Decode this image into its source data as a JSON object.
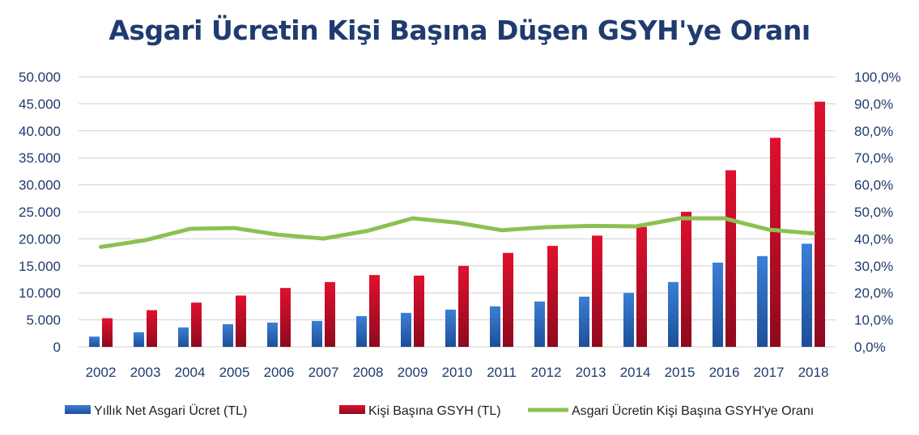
{
  "chart_data": {
    "type": "bar",
    "title": "Asgari Ücretin Kişi Başına Düşen GSYH'ye Oranı",
    "categories": [
      "2002",
      "2003",
      "2004",
      "2005",
      "2006",
      "2007",
      "2008",
      "2009",
      "2010",
      "2011",
      "2012",
      "2013",
      "2014",
      "2015",
      "2016",
      "2017",
      "2018"
    ],
    "series": [
      {
        "name": "Yıllık Net Asgari Ücret (TL)",
        "kind": "bar",
        "axis": "left",
        "values": [
          1900,
          2700,
          3600,
          4200,
          4500,
          4800,
          5700,
          6300,
          6900,
          7500,
          8400,
          9300,
          10000,
          12000,
          15600,
          16800,
          19100
        ]
      },
      {
        "name": "Kişi Başına GSYH (TL)",
        "kind": "bar",
        "axis": "left",
        "values": [
          5300,
          6800,
          8200,
          9500,
          10900,
          12000,
          13300,
          13200,
          15000,
          17400,
          18700,
          20600,
          22200,
          25000,
          32700,
          38700,
          45400
        ]
      },
      {
        "name": "Asgari Ücretin Kişi Başına GSYH'ye Oranı",
        "kind": "line",
        "axis": "right",
        "values": [
          37.0,
          39.5,
          43.7,
          44.0,
          41.5,
          40.1,
          43.0,
          47.6,
          46.0,
          43.2,
          44.3,
          44.8,
          44.6,
          47.6,
          47.6,
          43.4,
          42.0
        ]
      }
    ],
    "y_left": {
      "ylim": [
        0,
        50000
      ],
      "ticks": [
        "0",
        "5.000",
        "10.000",
        "15.000",
        "20.000",
        "25.000",
        "30.000",
        "35.000",
        "40.000",
        "45.000",
        "50.000"
      ]
    },
    "y_right": {
      "ylim": [
        0,
        100
      ],
      "ticks": [
        "0,0%",
        "10,0%",
        "20,0%",
        "30,0%",
        "40,0%",
        "50,0%",
        "60,0%",
        "70,0%",
        "80,0%",
        "90,0%",
        "100,0%"
      ]
    },
    "grid": true,
    "legend_position": "bottom",
    "colors": {
      "title": "#1f3b6f",
      "bar1": "#2f6ec4",
      "bar2": "#c8102e",
      "line": "#8cc152",
      "grid": "#d0d0d0",
      "axis_text": "#1f3b6f"
    }
  }
}
